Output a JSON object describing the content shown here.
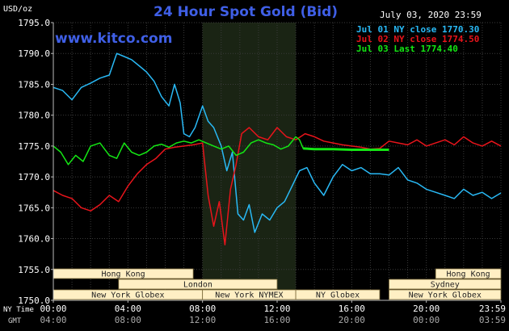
{
  "header": {
    "title": "24 Hour Spot Gold (Bid)",
    "website": "www.kitco.com",
    "date_time": "July 03, 2020 23:59",
    "unit_label": "USD/oz"
  },
  "legend": [
    {
      "text": "Jul 01 NY close 1770.30",
      "color": "#29b9f5"
    },
    {
      "text": "Jul 02 NY close 1774.50",
      "color": "#e8141b"
    },
    {
      "text": "Jul 03 Last 1774.40",
      "color": "#14e614"
    }
  ],
  "timezones": {
    "ny_label": "NY Time",
    "gmt_label": "GMT"
  },
  "markets": [
    {
      "name": "Hong Kong",
      "start": 0,
      "end": 7.5,
      "row": 0,
      "bg": "#ffefc4"
    },
    {
      "name": "London",
      "start": 3.5,
      "end": 12,
      "row": 1,
      "bg": "#ffefc4"
    },
    {
      "name": "New York Globex",
      "start": 0,
      "end": 8,
      "row": 2,
      "bg": "#ffefc4"
    },
    {
      "name": "New York NYMEX",
      "start": 8,
      "end": 13,
      "row": 2,
      "bg": "#ffefc4"
    },
    {
      "name": "NY Globex",
      "start": 13,
      "end": 17.5,
      "row": 2,
      "bg": "#ffefc4"
    },
    {
      "name": "Hong Kong",
      "start": 20.5,
      "end": 24,
      "row": 0,
      "bg": "#ffefc4"
    },
    {
      "name": "Sydney",
      "start": 18,
      "end": 24,
      "row": 1,
      "bg": "#ffefc4"
    },
    {
      "name": "New York Globex",
      "start": 18,
      "end": 24,
      "row": 2,
      "bg": "#ffefc4"
    }
  ],
  "chart_data": {
    "type": "line",
    "title": "24 Hour Spot Gold (Bid)",
    "ylabel": "USD/oz",
    "xlabel": "NY Time",
    "ylim": [
      1750,
      1795
    ],
    "xlim": [
      0,
      24
    ],
    "yticks": [
      1750.0,
      1755.0,
      1760.0,
      1765.0,
      1770.0,
      1775.0,
      1780.0,
      1785.0,
      1790.0,
      1795.0
    ],
    "ytick_labels": [
      "1750.0",
      "1755.0",
      "1760.0",
      "1765.0",
      "1770.0",
      "1775.0",
      "1780.0",
      "1785.0",
      "1790.0",
      "1795.0"
    ],
    "xticks": [
      0,
      4,
      8,
      12,
      16,
      20,
      24
    ],
    "xtick_labels_ny": [
      "00:00",
      "04:00",
      "08:00",
      "12:00",
      "16:00",
      "20:00",
      "23:59"
    ],
    "xtick_labels_gmt": [
      "04:00",
      "08:00",
      "12:00",
      "16:00",
      "20:00",
      "00:00",
      "03:59"
    ],
    "shaded_region": {
      "x_start": 8,
      "x_end": 13,
      "color": "#1a2414"
    },
    "grid": true,
    "series": [
      {
        "name": "Jul 01 NY close 1770.30",
        "color": "#29b9f5",
        "x": [
          0,
          0.5,
          1,
          1.5,
          2,
          2.5,
          3,
          3.4,
          3.8,
          4.2,
          4.6,
          5,
          5.4,
          5.8,
          6.2,
          6.5,
          6.8,
          7,
          7.3,
          7.6,
          8,
          8.3,
          8.6,
          9,
          9.3,
          9.6,
          9.9,
          10.2,
          10.5,
          10.8,
          11.2,
          11.6,
          12,
          12.4,
          12.8,
          13.2,
          13.6,
          14,
          14.5,
          15,
          15.5,
          16,
          16.5,
          17,
          17.5,
          18,
          18.5,
          19,
          19.5,
          20,
          20.5,
          21,
          21.5,
          22,
          22.5,
          23,
          23.5,
          24
        ],
        "y": [
          1784.5,
          1784,
          1782.5,
          1784.5,
          1785.2,
          1786,
          1786.5,
          1790,
          1789.5,
          1789,
          1788,
          1787,
          1785.5,
          1783,
          1781.5,
          1785,
          1782,
          1777,
          1776.5,
          1778,
          1781.5,
          1779,
          1778,
          1775,
          1771,
          1774,
          1764,
          1763,
          1765.5,
          1761,
          1764,
          1763,
          1765,
          1766,
          1768.5,
          1771,
          1771.5,
          1769,
          1767,
          1770,
          1772,
          1771,
          1771.5,
          1770.5,
          1770.5,
          1770.3,
          1771.5,
          1769.5,
          1769,
          1768,
          1767.5,
          1767,
          1766.5,
          1768,
          1767,
          1767.5,
          1766.5,
          1767.4
        ]
      },
      {
        "name": "Jul 02 NY close 1774.50",
        "color": "#e8141b",
        "x": [
          0,
          0.5,
          1,
          1.5,
          2,
          2.5,
          3,
          3.5,
          4,
          4.5,
          5,
          5.5,
          6,
          6.5,
          7,
          7.5,
          8,
          8.3,
          8.6,
          8.9,
          9.2,
          9.5,
          9.8,
          10.1,
          10.5,
          11,
          11.5,
          12,
          12.5,
          13,
          13.5,
          14,
          14.5,
          15,
          15.5,
          16,
          16.5,
          17,
          17.5,
          18,
          18.5,
          19,
          19.5,
          20,
          20.5,
          21,
          21.5,
          22,
          22.5,
          23,
          23.5,
          24
        ],
        "y": [
          1767.8,
          1767,
          1766.5,
          1765,
          1764.5,
          1765.5,
          1767,
          1766,
          1768.5,
          1770.5,
          1772,
          1773,
          1774.5,
          1774.8,
          1775,
          1775.2,
          1775.5,
          1767,
          1762,
          1766,
          1759,
          1768,
          1772,
          1777,
          1778,
          1776.5,
          1776,
          1778,
          1776.5,
          1776,
          1777,
          1776.5,
          1775.8,
          1775.5,
          1775.2,
          1775,
          1774.8,
          1774.5,
          1774.6,
          1775.8,
          1775.5,
          1775.2,
          1776,
          1775,
          1775.5,
          1776,
          1775.2,
          1776.5,
          1775.5,
          1775,
          1775.8,
          1775
        ]
      },
      {
        "name": "Jul 03 Last 1774.40",
        "color": "#14e614",
        "x": [
          0,
          0.4,
          0.8,
          1.2,
          1.6,
          2,
          2.5,
          3,
          3.4,
          3.8,
          4.2,
          4.6,
          5,
          5.4,
          5.8,
          6.2,
          6.6,
          7,
          7.4,
          7.8,
          8.2,
          8.6,
          9,
          9.4,
          9.8,
          10.2,
          10.6,
          11,
          11.4,
          11.8,
          12.2,
          12.6,
          13,
          13.2,
          13.4,
          14,
          15,
          16,
          17,
          18
        ],
        "y": [
          1775,
          1774,
          1772,
          1773.5,
          1772.5,
          1775,
          1775.5,
          1773.5,
          1773,
          1775.5,
          1774,
          1773.5,
          1774,
          1775,
          1775.3,
          1774.8,
          1775.5,
          1775.8,
          1775.5,
          1776,
          1775.5,
          1775,
          1774.5,
          1775,
          1773.5,
          1774,
          1775.5,
          1776,
          1775.5,
          1775.2,
          1774.5,
          1775,
          1776.5,
          1776,
          1774.6,
          1774.5,
          1774.5,
          1774.4,
          1774.4,
          1774.4
        ]
      }
    ]
  }
}
